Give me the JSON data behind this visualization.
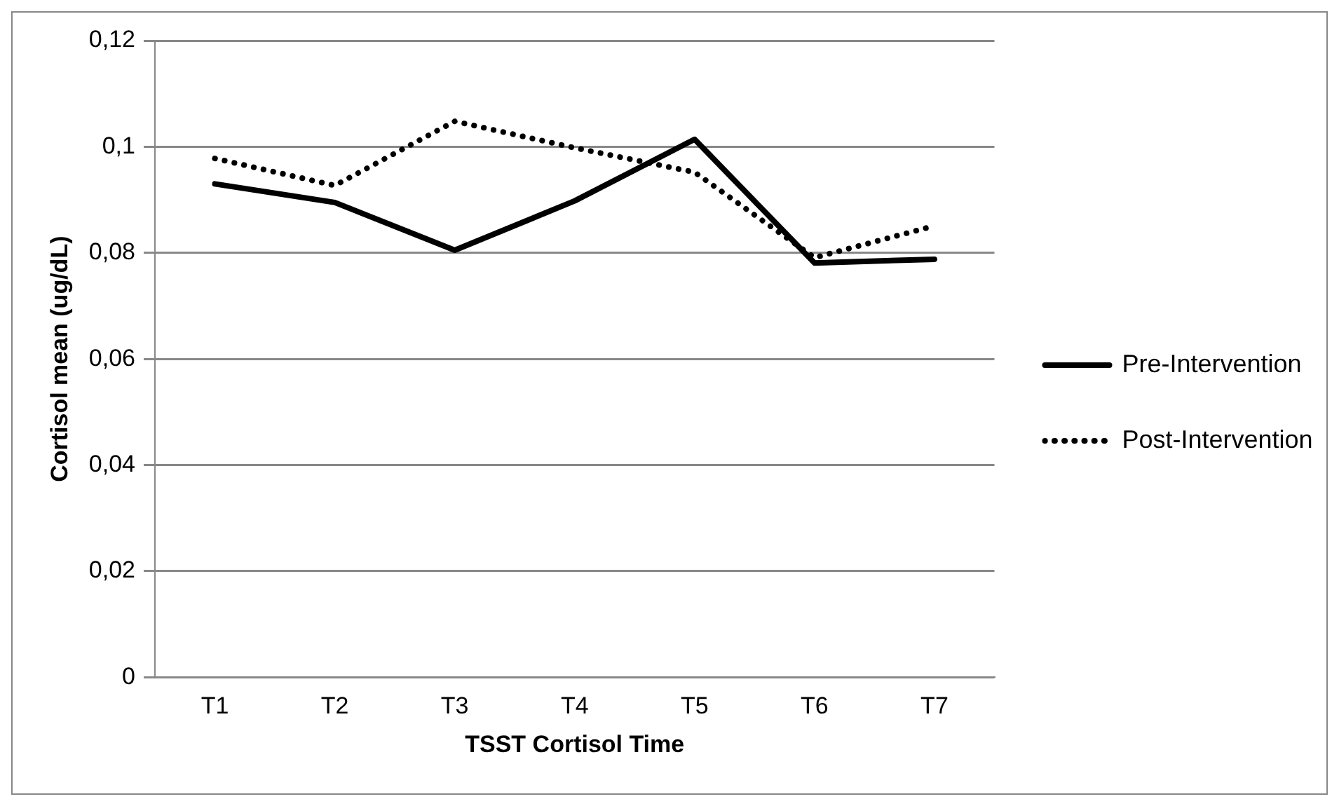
{
  "chart_data": {
    "type": "line",
    "xlabel": "TSST Cortisol Time",
    "ylabel": "Cortisol mean (ug/dL)",
    "categories": [
      "T1",
      "T2",
      "T3",
      "T4",
      "T5",
      "T6",
      "T7"
    ],
    "series": [
      {
        "name": "Pre-Intervention",
        "color": "#000000",
        "line_style": "solid",
        "values": [
          0.093,
          0.0895,
          0.0805,
          0.0898,
          0.1014,
          0.0781,
          0.0788
        ]
      },
      {
        "name": "Post-Intervention",
        "color": "#000000",
        "line_style": "dotted",
        "values": [
          0.0978,
          0.0927,
          0.1048,
          0.0998,
          0.0952,
          0.0791,
          0.0851
        ]
      }
    ],
    "ylim": [
      0,
      0.12
    ],
    "yticks": [
      {
        "value": 0,
        "label": "0"
      },
      {
        "value": 0.02,
        "label": "0,02"
      },
      {
        "value": 0.04,
        "label": "0,04"
      },
      {
        "value": 0.06,
        "label": "0,06"
      },
      {
        "value": 0.08,
        "label": "0,08"
      },
      {
        "value": 0.1,
        "label": "0,1"
      },
      {
        "value": 0.12,
        "label": "0,12"
      }
    ],
    "grid": "y",
    "legend": "right",
    "marker": "none"
  }
}
